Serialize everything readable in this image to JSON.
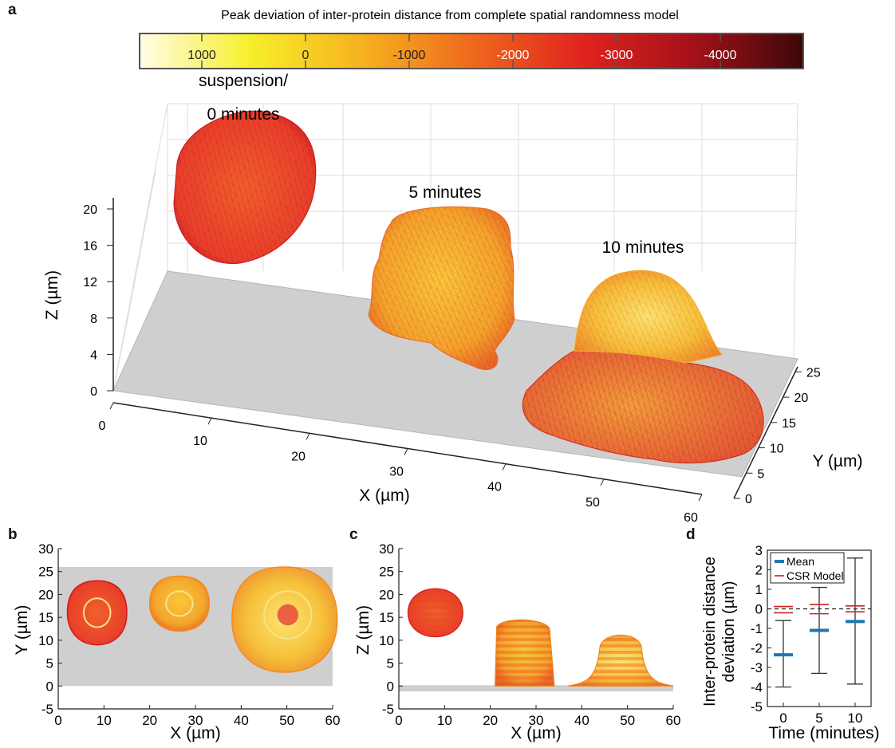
{
  "panels": {
    "a": "a",
    "b": "b",
    "c": "c",
    "d": "d"
  },
  "colors": {
    "mesh_red": "#d7191c",
    "mesh_orange": "#f28a1f",
    "mesh_yellow": "#f7e21a",
    "floor_gray": "#cfcfcf",
    "mean_blue": "#1f77b4",
    "csr_red": "#cc2222"
  },
  "chart_data": [
    {
      "panel": "a",
      "type": "surface3d",
      "colorbar": {
        "title": "Peak deviation of inter-protein distance from complete spatial randomness model",
        "ticks": [
          1000,
          0,
          -1000,
          -2000,
          -3000,
          -4000
        ],
        "tick_labels": [
          "1000",
          "0",
          "-1000",
          "-2000",
          "-3000",
          "-4000"
        ],
        "range": [
          1600,
          -4800
        ],
        "colors": [
          "#fffde8",
          "#f7ef2a",
          "#f6b31f",
          "#ef6a1d",
          "#e0241e",
          "#a5111a",
          "#3b0808"
        ]
      },
      "xlabel": "X (µm)",
      "ylabel": "Y (µm)",
      "zlabel": "Z (µm)",
      "x_ticks": [
        "0",
        "10",
        "20",
        "30",
        "40",
        "50",
        "60"
      ],
      "y_ticks": [
        "0",
        "5",
        "10",
        "15",
        "20",
        "25"
      ],
      "z_ticks": [
        "0",
        "4",
        "8",
        "12",
        "16",
        "20"
      ],
      "xlim": [
        0,
        60
      ],
      "ylim": [
        0,
        26
      ],
      "zlim": [
        0,
        24
      ],
      "grid": true,
      "cells": [
        {
          "label": "suspension/\n0 minutes",
          "label_lines": [
            "suspension/",
            "0 minutes"
          ],
          "x_center": 9,
          "dominant_color": "red"
        },
        {
          "label": "5 minutes",
          "label_lines": [
            "5 minutes"
          ],
          "x_center": 29,
          "dominant_color": "orange"
        },
        {
          "label": "10 minutes",
          "label_lines": [
            "10 minutes"
          ],
          "x_center": 48,
          "dominant_color": "yellow-red"
        }
      ]
    },
    {
      "panel": "b",
      "type": "heatmap",
      "xlabel": "X (µm)",
      "ylabel": "Y (µm)",
      "xlim": [
        0,
        60
      ],
      "ylim": [
        -5,
        30
      ],
      "x_ticks": [
        0,
        10,
        20,
        30,
        40,
        50,
        60
      ],
      "y_ticks": [
        -5,
        0,
        5,
        10,
        15,
        20,
        25,
        30
      ],
      "substrate_region": {
        "y_range": [
          0,
          26
        ]
      },
      "cells": [
        {
          "name": "0 minutes",
          "x_range": [
            2,
            15
          ],
          "y_range": [
            9,
            23
          ]
        },
        {
          "name": "5 minutes",
          "x_range": [
            20,
            33
          ],
          "y_range": [
            12,
            24
          ]
        },
        {
          "name": "10 minutes",
          "x_range": [
            38,
            61
          ],
          "y_range": [
            3,
            26
          ]
        }
      ]
    },
    {
      "panel": "c",
      "type": "heatmap",
      "xlabel": "X (µm)",
      "ylabel": "Z (µm)",
      "xlim": [
        0,
        60
      ],
      "ylim": [
        -5,
        30
      ],
      "x_ticks": [
        0,
        10,
        20,
        30,
        40,
        50,
        60
      ],
      "y_ticks": [
        -5,
        0,
        5,
        10,
        15,
        20,
        25,
        30
      ],
      "substrate_z": -0.5,
      "cells": [
        {
          "name": "0 minutes",
          "x_range": [
            2,
            14
          ],
          "z_range": [
            9,
            23
          ]
        },
        {
          "name": "5 minutes",
          "x_range": [
            20,
            34
          ],
          "z_range": [
            0,
            15
          ]
        },
        {
          "name": "10 minutes",
          "x_range": [
            37,
            60
          ],
          "z_range": [
            0,
            12
          ]
        }
      ]
    },
    {
      "panel": "d",
      "type": "errorbar",
      "xlabel": "Time (minutes)",
      "ylabel": "Inter-protein distance deviation (µm)",
      "ylabel_lines": [
        "Inter-protein distance",
        "deviation (µm)"
      ],
      "categories": [
        "0",
        "5",
        "10"
      ],
      "ylim": [
        -5,
        3
      ],
      "y_ticks": [
        -5,
        -4,
        -3,
        -2,
        -1,
        0,
        1,
        2,
        3
      ],
      "series": [
        {
          "name": "Mean",
          "values": [
            -2.35,
            -1.1,
            -0.65
          ],
          "lower": [
            -4.0,
            -3.3,
            -3.85
          ],
          "upper": [
            -0.6,
            1.1,
            2.6
          ]
        },
        {
          "name": "CSR Model",
          "values": [
            0,
            0,
            0
          ],
          "lower": [
            -0.2,
            -0.25,
            -0.15
          ],
          "upper": [
            0.12,
            0.22,
            0.15
          ]
        }
      ],
      "reference_line": 0,
      "legend": "top-left"
    }
  ]
}
